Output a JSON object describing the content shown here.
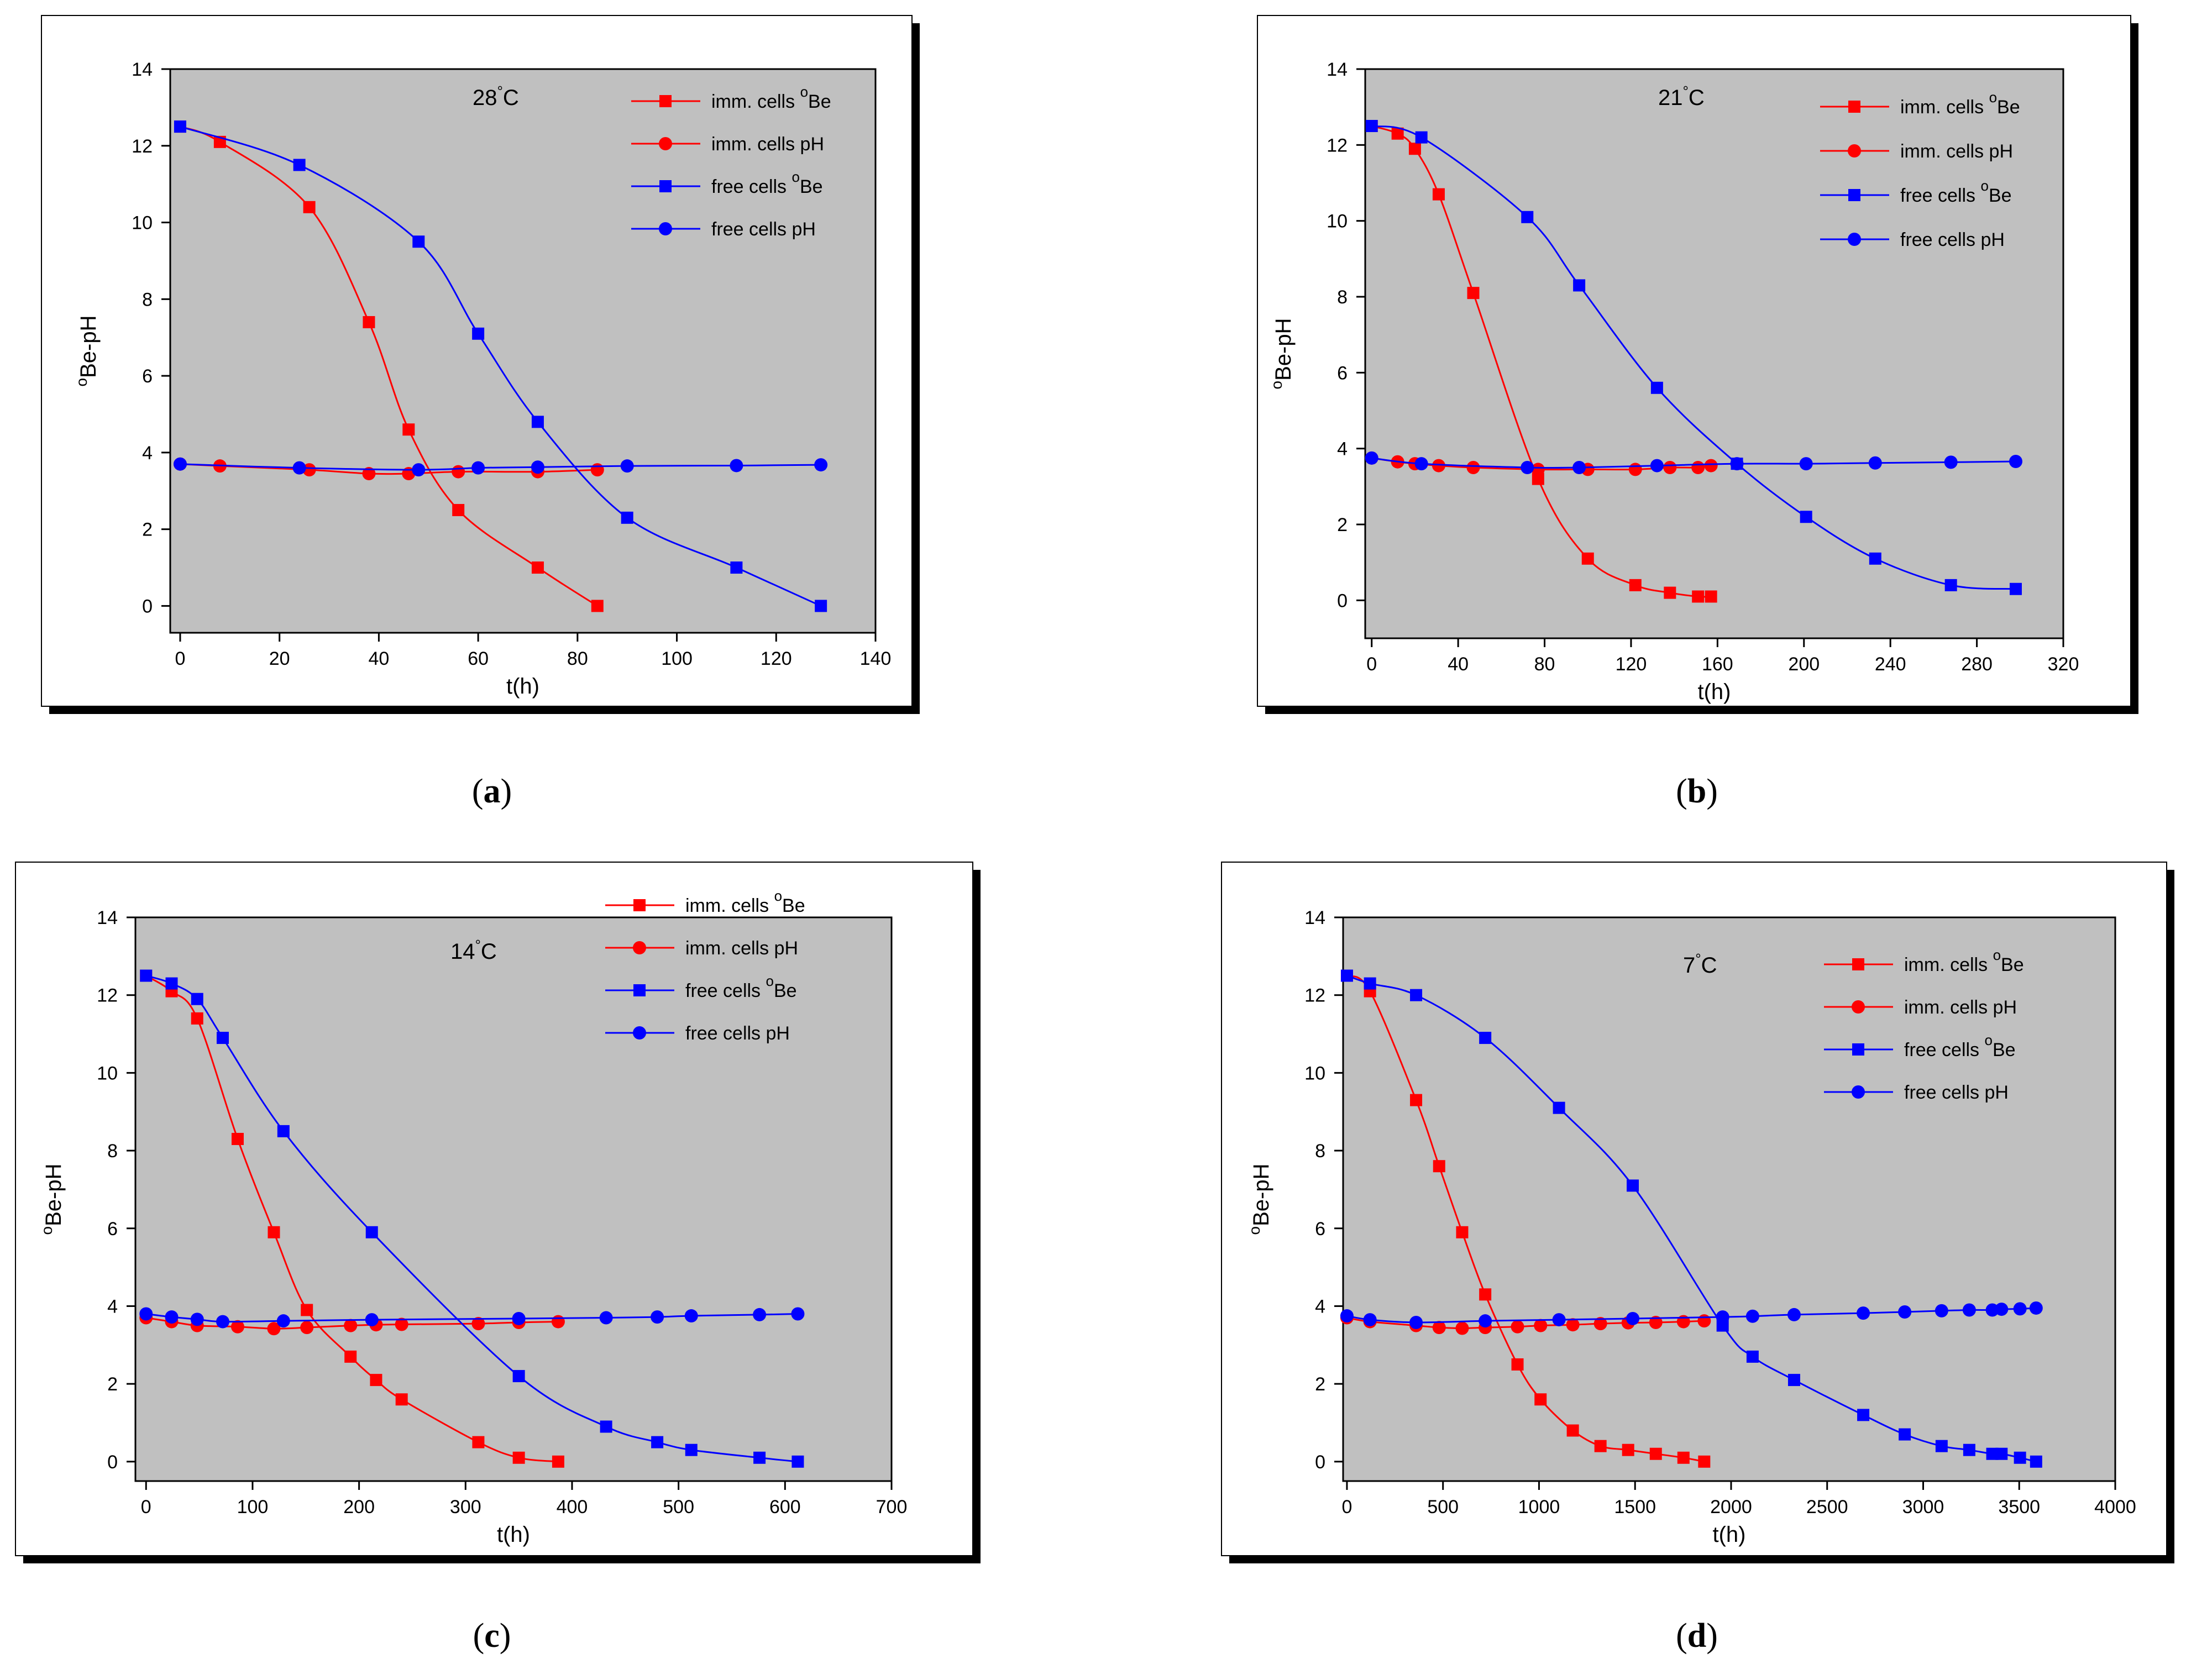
{
  "chart_data": [
    {
      "type": "line",
      "panel": "a",
      "caption_letter": "a",
      "title": "28°C",
      "title_value": "28",
      "title_unit": "C",
      "xlabel": "t(h)",
      "ylabel_deg": "o",
      "ylabel_text": "Be-pH",
      "xlim": [
        -2,
        140
      ],
      "ylim": [
        -0.7,
        14
      ],
      "xticks": [
        0,
        20,
        40,
        60,
        80,
        100,
        120,
        140
      ],
      "yticks": [
        0,
        2,
        4,
        6,
        8,
        10,
        12,
        14
      ],
      "series": [
        {
          "name": "imm. cells °Be",
          "label_text": "imm. cells ",
          "label_sup": "o",
          "label_tail": "Be",
          "color": "#ff0000",
          "marker": "square",
          "x": [
            0,
            8,
            26,
            38,
            46,
            56,
            72,
            84
          ],
          "y": [
            12.5,
            12.1,
            10.4,
            7.4,
            4.6,
            2.5,
            1.0,
            0.0
          ]
        },
        {
          "name": "imm. cells pH",
          "label_text": "imm. cells pH",
          "color": "#ff0000",
          "marker": "circle",
          "x": [
            0,
            8,
            26,
            38,
            46,
            56,
            72,
            84
          ],
          "y": [
            3.7,
            3.65,
            3.55,
            3.45,
            3.45,
            3.5,
            3.5,
            3.55
          ]
        },
        {
          "name": "free cells °Be",
          "label_text": "free cells ",
          "label_sup": "o",
          "label_tail": "Be",
          "color": "#0000ff",
          "marker": "square",
          "x": [
            0,
            24,
            48,
            60,
            72,
            90,
            112,
            129
          ],
          "y": [
            12.5,
            11.5,
            9.5,
            7.1,
            4.8,
            2.3,
            1.0,
            0.0
          ]
        },
        {
          "name": "free cells pH",
          "label_text": "free cells pH",
          "color": "#0000ff",
          "marker": "circle",
          "x": [
            0,
            24,
            48,
            60,
            72,
            90,
            112,
            129
          ],
          "y": [
            3.7,
            3.6,
            3.55,
            3.6,
            3.62,
            3.65,
            3.66,
            3.68
          ]
        }
      ]
    },
    {
      "type": "line",
      "panel": "b",
      "caption_letter": "b",
      "title": "21°C",
      "title_value": "21",
      "title_unit": "C",
      "xlabel": "t(h)",
      "ylabel_deg": "o",
      "ylabel_text": "Be-pH",
      "xlim": [
        -3,
        320
      ],
      "ylim": [
        -1,
        14
      ],
      "xticks": [
        0,
        40,
        80,
        120,
        160,
        200,
        240,
        280,
        320
      ],
      "yticks": [
        0,
        2,
        4,
        6,
        8,
        10,
        12,
        14
      ],
      "series": [
        {
          "name": "imm. cells °Be",
          "label_text": "imm. cells ",
          "label_sup": "o",
          "label_tail": "Be",
          "color": "#ff0000",
          "marker": "square",
          "x": [
            0,
            12,
            20,
            31,
            47,
            77,
            100,
            122,
            138,
            151,
            157
          ],
          "y": [
            12.5,
            12.3,
            11.9,
            10.7,
            8.1,
            3.2,
            1.1,
            0.4,
            0.2,
            0.1,
            0.1
          ]
        },
        {
          "name": "imm. cells pH",
          "label_text": "imm. cells pH",
          "color": "#ff0000",
          "marker": "circle",
          "x": [
            0,
            12,
            20,
            31,
            47,
            77,
            100,
            122,
            138,
            151,
            157
          ],
          "y": [
            3.75,
            3.65,
            3.6,
            3.55,
            3.5,
            3.45,
            3.45,
            3.45,
            3.5,
            3.5,
            3.55
          ]
        },
        {
          "name": "free cells °Be",
          "label_text": "free cells ",
          "label_sup": "o",
          "label_tail": "Be",
          "color": "#0000ff",
          "marker": "square",
          "x": [
            0,
            23,
            72,
            96,
            132,
            169,
            201,
            233,
            268,
            298
          ],
          "y": [
            12.5,
            12.2,
            10.1,
            8.3,
            5.6,
            3.6,
            2.2,
            1.1,
            0.4,
            0.3
          ]
        },
        {
          "name": "free cells pH",
          "label_text": "free cells pH",
          "color": "#0000ff",
          "marker": "circle",
          "x": [
            0,
            23,
            72,
            96,
            132,
            169,
            201,
            233,
            268,
            298
          ],
          "y": [
            3.75,
            3.6,
            3.5,
            3.5,
            3.55,
            3.6,
            3.6,
            3.62,
            3.64,
            3.66
          ]
        }
      ]
    },
    {
      "type": "line",
      "panel": "c",
      "caption_letter": "c",
      "title": "14°C",
      "title_value": "14",
      "title_unit": "C",
      "xlabel": "t(h)",
      "ylabel_deg": "o",
      "ylabel_text": "Be-pH",
      "xlim": [
        -10,
        700
      ],
      "ylim": [
        -0.5,
        14
      ],
      "xticks": [
        0,
        100,
        200,
        300,
        400,
        500,
        600,
        700
      ],
      "yticks": [
        0,
        2,
        4,
        6,
        8,
        10,
        12,
        14
      ],
      "series": [
        {
          "name": "imm. cells °Be",
          "label_text": "imm. cells ",
          "label_sup": "o",
          "label_tail": "Be",
          "color": "#ff0000",
          "marker": "square",
          "x": [
            0,
            24,
            48,
            86,
            120,
            151,
            192,
            216,
            240,
            312,
            350,
            387
          ],
          "y": [
            12.5,
            12.1,
            11.4,
            8.3,
            5.9,
            3.9,
            2.7,
            2.1,
            1.6,
            0.5,
            0.1,
            0.0
          ]
        },
        {
          "name": "imm. cells pH",
          "label_text": "imm. cells pH",
          "color": "#ff0000",
          "marker": "circle",
          "x": [
            0,
            24,
            48,
            86,
            120,
            151,
            192,
            216,
            240,
            312,
            350,
            387
          ],
          "y": [
            3.7,
            3.6,
            3.5,
            3.47,
            3.42,
            3.45,
            3.5,
            3.52,
            3.53,
            3.55,
            3.58,
            3.6
          ]
        },
        {
          "name": "free cells °Be",
          "label_text": "free cells ",
          "label_sup": "o",
          "label_tail": "Be",
          "color": "#0000ff",
          "marker": "square",
          "x": [
            0,
            24,
            48,
            72,
            129,
            212,
            350,
            432,
            480,
            512,
            576,
            612
          ],
          "y": [
            12.5,
            12.3,
            11.9,
            10.9,
            8.5,
            5.9,
            2.2,
            0.9,
            0.5,
            0.3,
            0.1,
            0.0
          ]
        },
        {
          "name": "free cells pH",
          "label_text": "free cells pH",
          "color": "#0000ff",
          "marker": "circle",
          "x": [
            0,
            24,
            48,
            72,
            129,
            212,
            350,
            432,
            480,
            512,
            576,
            612
          ],
          "y": [
            3.8,
            3.72,
            3.66,
            3.6,
            3.62,
            3.65,
            3.68,
            3.7,
            3.72,
            3.75,
            3.78,
            3.8
          ]
        }
      ]
    },
    {
      "type": "line",
      "panel": "d",
      "caption_letter": "d",
      "title": "7°C",
      "title_value": "7",
      "title_unit": "C",
      "xlabel": "t(h)",
      "ylabel_deg": "o",
      "ylabel_text": "Be-pH",
      "xlim": [
        -20,
        4000
      ],
      "ylim": [
        -0.5,
        14
      ],
      "xticks": [
        0,
        500,
        1000,
        1500,
        2000,
        2500,
        3000,
        3500,
        4000
      ],
      "yticks": [
        0,
        2,
        4,
        6,
        8,
        10,
        12,
        14
      ],
      "series": [
        {
          "name": "imm. cells °Be",
          "label_text": "imm. cells ",
          "label_sup": "o",
          "label_tail": "Be",
          "color": "#ff0000",
          "marker": "square",
          "x": [
            0,
            120,
            360,
            480,
            600,
            720,
            888,
            1008,
            1176,
            1320,
            1464,
            1608,
            1752,
            1860
          ],
          "y": [
            12.5,
            12.1,
            9.3,
            7.6,
            5.9,
            4.3,
            2.5,
            1.6,
            0.8,
            0.4,
            0.3,
            0.2,
            0.1,
            0.0
          ]
        },
        {
          "name": "imm. cells pH",
          "label_text": "imm. cells pH",
          "color": "#ff0000",
          "marker": "circle",
          "x": [
            0,
            120,
            360,
            480,
            600,
            720,
            888,
            1008,
            1176,
            1320,
            1464,
            1608,
            1752,
            1860
          ],
          "y": [
            3.7,
            3.6,
            3.5,
            3.45,
            3.43,
            3.45,
            3.47,
            3.5,
            3.52,
            3.55,
            3.57,
            3.58,
            3.6,
            3.62
          ]
        },
        {
          "name": "free cells °Be",
          "label_text": "free cells ",
          "label_sup": "o",
          "label_tail": "Be",
          "color": "#0000ff",
          "marker": "square",
          "x": [
            0,
            120,
            360,
            720,
            1104,
            1488,
            1956,
            2112,
            2328,
            2688,
            2904,
            3096,
            3240,
            3360,
            3408,
            3504,
            3588
          ],
          "y": [
            12.5,
            12.3,
            12.0,
            10.9,
            9.1,
            7.1,
            3.5,
            2.7,
            2.1,
            1.2,
            0.7,
            0.4,
            0.3,
            0.2,
            0.2,
            0.1,
            0.0
          ]
        },
        {
          "name": "free cells pH",
          "label_text": "free cells pH",
          "color": "#0000ff",
          "marker": "circle",
          "x": [
            0,
            120,
            360,
            720,
            1104,
            1488,
            1956,
            2112,
            2328,
            2688,
            2904,
            3096,
            3240,
            3360,
            3408,
            3504,
            3588
          ],
          "y": [
            3.75,
            3.65,
            3.58,
            3.62,
            3.65,
            3.68,
            3.72,
            3.74,
            3.78,
            3.82,
            3.85,
            3.88,
            3.9,
            3.9,
            3.92,
            3.93,
            3.95
          ]
        }
      ]
    }
  ]
}
